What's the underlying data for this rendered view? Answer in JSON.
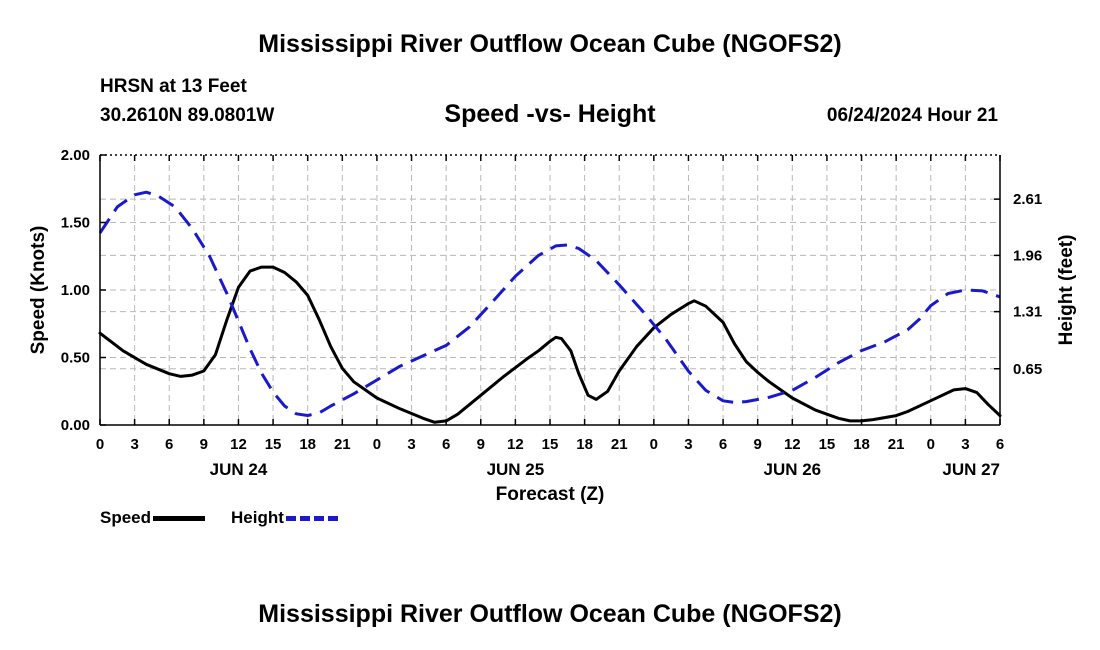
{
  "chart_data": {
    "type": "line",
    "title": "Mississippi River Outflow Ocean Cube (NGOFS2)",
    "subtitle": "Speed -vs- Height",
    "station": "HRSN at 13 Feet",
    "location": "30.2610N  89.0801W",
    "timestamp": "06/24/2024 Hour 21",
    "xlabel": "Forecast (Z)",
    "ylabel_left": "Speed (Knots)",
    "ylabel_right": "Height (feet)",
    "x_range_hours": [
      0,
      78
    ],
    "x_ticks": [
      {
        "h": 0,
        "label": "0"
      },
      {
        "h": 3,
        "label": "3"
      },
      {
        "h": 6,
        "label": "6"
      },
      {
        "h": 9,
        "label": "9"
      },
      {
        "h": 12,
        "label": "12"
      },
      {
        "h": 15,
        "label": "15"
      },
      {
        "h": 18,
        "label": "18"
      },
      {
        "h": 21,
        "label": "21"
      },
      {
        "h": 24,
        "label": "0"
      },
      {
        "h": 27,
        "label": "3"
      },
      {
        "h": 30,
        "label": "6"
      },
      {
        "h": 33,
        "label": "9"
      },
      {
        "h": 36,
        "label": "12"
      },
      {
        "h": 39,
        "label": "15"
      },
      {
        "h": 42,
        "label": "18"
      },
      {
        "h": 45,
        "label": "21"
      },
      {
        "h": 48,
        "label": "0"
      },
      {
        "h": 51,
        "label": "3"
      },
      {
        "h": 54,
        "label": "6"
      },
      {
        "h": 57,
        "label": "9"
      },
      {
        "h": 60,
        "label": "12"
      },
      {
        "h": 63,
        "label": "15"
      },
      {
        "h": 66,
        "label": "18"
      },
      {
        "h": 69,
        "label": "21"
      },
      {
        "h": 72,
        "label": "0"
      },
      {
        "h": 75,
        "label": "3"
      },
      {
        "h": 78,
        "label": "6"
      }
    ],
    "date_labels": [
      {
        "h": 12,
        "label": "JUN 24"
      },
      {
        "h": 36,
        "label": "JUN 25"
      },
      {
        "h": 60,
        "label": "JUN 26"
      },
      {
        "h": 78,
        "label": "JUN 27"
      }
    ],
    "y_left": {
      "range": [
        0,
        2
      ],
      "ticks": [
        "0.00",
        "0.50",
        "1.00",
        "1.50",
        "2.00"
      ],
      "tick_values": [
        0,
        0.5,
        1,
        1.5,
        2
      ]
    },
    "y_right": {
      "range": [
        0,
        3.12
      ],
      "ticks": [
        "0.65",
        "1.31",
        "1.96",
        "2.61"
      ],
      "tick_values": [
        0.65,
        1.31,
        1.96,
        2.61
      ]
    },
    "grid": true,
    "series": [
      {
        "name": "Speed",
        "axis": "left",
        "color": "#000000",
        "style": "solid",
        "points": [
          [
            0,
            0.68
          ],
          [
            2,
            0.55
          ],
          [
            4,
            0.45
          ],
          [
            6,
            0.38
          ],
          [
            7,
            0.36
          ],
          [
            8,
            0.37
          ],
          [
            9,
            0.4
          ],
          [
            10,
            0.52
          ],
          [
            11,
            0.78
          ],
          [
            12,
            1.02
          ],
          [
            13,
            1.14
          ],
          [
            14,
            1.17
          ],
          [
            15,
            1.17
          ],
          [
            16,
            1.13
          ],
          [
            17,
            1.06
          ],
          [
            18,
            0.96
          ],
          [
            19,
            0.78
          ],
          [
            20,
            0.58
          ],
          [
            21,
            0.42
          ],
          [
            22,
            0.32
          ],
          [
            24,
            0.2
          ],
          [
            26,
            0.12
          ],
          [
            28,
            0.05
          ],
          [
            29,
            0.02
          ],
          [
            30,
            0.03
          ],
          [
            31,
            0.08
          ],
          [
            33,
            0.22
          ],
          [
            35,
            0.36
          ],
          [
            37,
            0.49
          ],
          [
            38,
            0.55
          ],
          [
            39,
            0.62
          ],
          [
            39.5,
            0.65
          ],
          [
            40,
            0.64
          ],
          [
            40.8,
            0.55
          ],
          [
            41.5,
            0.38
          ],
          [
            42.3,
            0.22
          ],
          [
            43,
            0.19
          ],
          [
            44,
            0.25
          ],
          [
            45,
            0.4
          ],
          [
            46.5,
            0.58
          ],
          [
            48,
            0.72
          ],
          [
            49.5,
            0.82
          ],
          [
            51,
            0.9
          ],
          [
            51.5,
            0.92
          ],
          [
            52.5,
            0.88
          ],
          [
            54,
            0.76
          ],
          [
            55,
            0.6
          ],
          [
            56,
            0.47
          ],
          [
            57,
            0.39
          ],
          [
            58,
            0.32
          ],
          [
            60,
            0.2
          ],
          [
            62,
            0.11
          ],
          [
            64,
            0.05
          ],
          [
            65,
            0.03
          ],
          [
            66,
            0.03
          ],
          [
            67,
            0.04
          ],
          [
            69,
            0.07
          ],
          [
            70,
            0.1
          ],
          [
            72,
            0.18
          ],
          [
            74,
            0.26
          ],
          [
            75,
            0.27
          ],
          [
            76,
            0.24
          ],
          [
            77,
            0.15
          ],
          [
            78,
            0.07
          ]
        ]
      },
      {
        "name": "Height",
        "axis": "right",
        "color": "#1a1acc",
        "style": "dashed",
        "points": [
          [
            0,
            2.22
          ],
          [
            1.5,
            2.52
          ],
          [
            3,
            2.66
          ],
          [
            4,
            2.69
          ],
          [
            5,
            2.65
          ],
          [
            6.5,
            2.52
          ],
          [
            8,
            2.27
          ],
          [
            9.5,
            1.95
          ],
          [
            11,
            1.52
          ],
          [
            12,
            1.2
          ],
          [
            13,
            0.88
          ],
          [
            14,
            0.6
          ],
          [
            15,
            0.38
          ],
          [
            16,
            0.22
          ],
          [
            17,
            0.13
          ],
          [
            18,
            0.11
          ],
          [
            19,
            0.14
          ],
          [
            20,
            0.22
          ],
          [
            22,
            0.36
          ],
          [
            24,
            0.52
          ],
          [
            26,
            0.68
          ],
          [
            28,
            0.8
          ],
          [
            30,
            0.92
          ],
          [
            32,
            1.13
          ],
          [
            34,
            1.42
          ],
          [
            36,
            1.72
          ],
          [
            38,
            1.96
          ],
          [
            39.5,
            2.07
          ],
          [
            40.5,
            2.08
          ],
          [
            41.5,
            2.04
          ],
          [
            43,
            1.9
          ],
          [
            45,
            1.62
          ],
          [
            47,
            1.32
          ],
          [
            49,
            1.0
          ],
          [
            51,
            0.62
          ],
          [
            52.5,
            0.4
          ],
          [
            54,
            0.28
          ],
          [
            55,
            0.26
          ],
          [
            56,
            0.27
          ],
          [
            58,
            0.32
          ],
          [
            60,
            0.4
          ],
          [
            62,
            0.55
          ],
          [
            64,
            0.72
          ],
          [
            66,
            0.86
          ],
          [
            68,
            0.96
          ],
          [
            70,
            1.1
          ],
          [
            71,
            1.22
          ],
          [
            72,
            1.38
          ],
          [
            73.5,
            1.52
          ],
          [
            75,
            1.56
          ],
          [
            76.5,
            1.55
          ],
          [
            78,
            1.48
          ]
        ]
      }
    ]
  },
  "legend": {
    "speed_label": "Speed",
    "height_label": "Height"
  },
  "footer_title": "Mississippi River Outflow Ocean Cube (NGOFS2)"
}
